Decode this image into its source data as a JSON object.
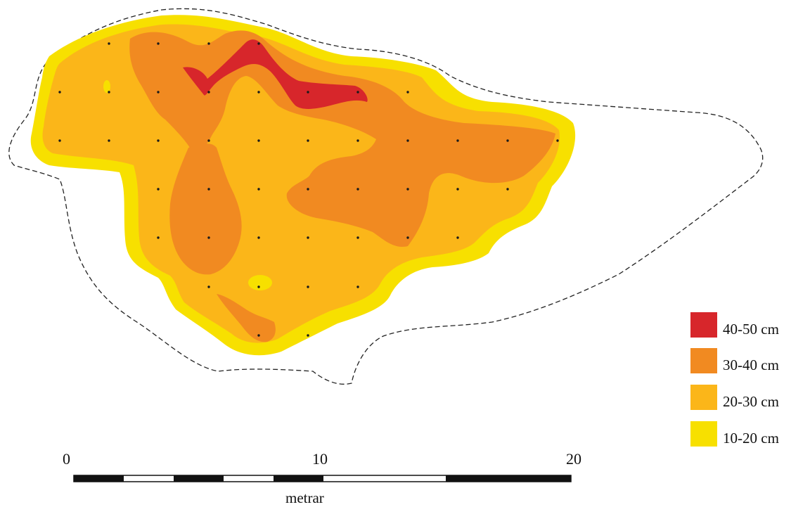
{
  "colors": {
    "c40_50": "#d7262b",
    "c30_40": "#f18a21",
    "c20_30": "#fbb619",
    "c10_20": "#f7e000",
    "outline": "#222222",
    "points": "#1a1a1a"
  },
  "legend": {
    "items": [
      {
        "label": "40-50 cm",
        "color": "#d7262b"
      },
      {
        "label": "30-40 cm",
        "color": "#f18a21"
      },
      {
        "label": "20-30 cm",
        "color": "#fbb619"
      },
      {
        "label": "10-20 cm",
        "color": "#f7e000"
      }
    ]
  },
  "scale_bar": {
    "tick_0": "0",
    "tick_10": "10",
    "tick_20": "20",
    "unit": "metrar"
  }
}
